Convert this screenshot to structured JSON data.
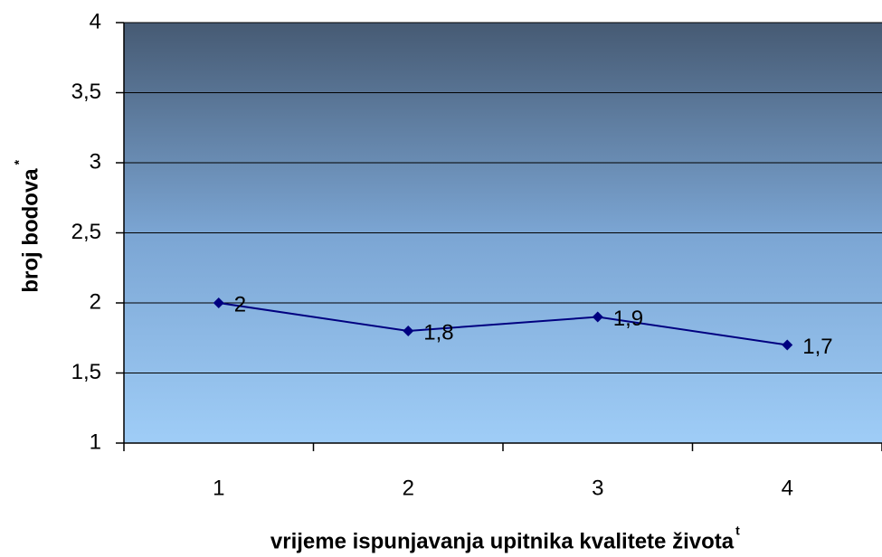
{
  "chart_data": {
    "type": "line",
    "x_label": "vrijeme ispunjavanja upitnika kvalitete života",
    "x_label_sup": "t",
    "y_label": "broj bodova",
    "y_label_sup": "*",
    "categories": [
      "1",
      "2",
      "3",
      "4"
    ],
    "series": [
      {
        "color": "#000080",
        "values": [
          2,
          1.8,
          1.9,
          1.7
        ],
        "value_labels": [
          "2",
          "1,8",
          "1,9",
          "1,7"
        ]
      }
    ],
    "ylim": [
      1,
      4
    ],
    "yticks": [
      1,
      {
        "value": 1.5,
        "label": "1,5"
      },
      2,
      {
        "value": 2.5,
        "label": "2,5"
      },
      3,
      {
        "value": 3.5,
        "label": "3,5"
      },
      4
    ],
    "grid": true
  }
}
